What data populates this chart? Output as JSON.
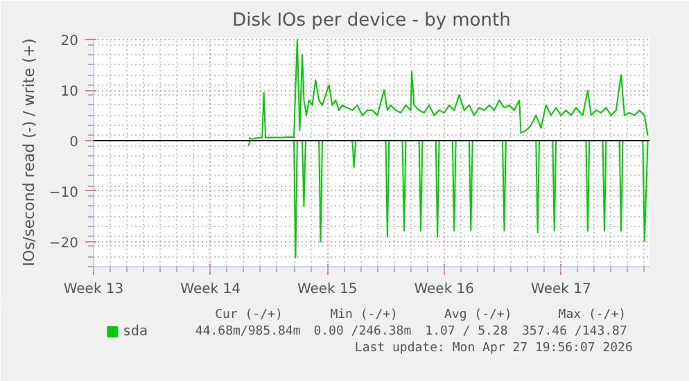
{
  "chart_data": {
    "type": "line",
    "title": "Disk IOs per device - by month",
    "ylabel": "IOs/second read (-) / write (+)",
    "xlim": [
      "2026-03-23",
      "2026-04-25T07:12"
    ],
    "xticks": [
      {
        "value": "2026-03-23",
        "label": "Week 13"
      },
      {
        "value": "2026-03-30",
        "label": "Week 14"
      },
      {
        "value": "2026-04-06",
        "label": "Week 15"
      },
      {
        "value": "2026-04-13",
        "label": "Week 16"
      },
      {
        "value": "2026-04-20",
        "label": "Week 17"
      }
    ],
    "ylim": [
      -25,
      20.3
    ],
    "yticks": [
      -20,
      -10,
      0,
      10,
      20
    ],
    "grid": true,
    "legend": "bottom left",
    "marker": "none",
    "line_style": "solid",
    "ref_lines": [
      {
        "axis": "y",
        "value": 0,
        "color": "#000000"
      }
    ],
    "series": [
      {
        "name": "sda",
        "color": "#00cc00",
        "x": [
          "2026-04-01T07:12",
          "2026-04-01T12:00",
          "2026-04-01T19:12",
          "2026-04-02T02:24",
          "2026-04-02T04:48",
          "2026-04-02T07:12",
          "2026-04-02T19:12",
          "2026-04-03T07:12",
          "2026-04-03T19:12",
          "2026-04-04T00:00",
          "2026-04-04T04:48",
          "2026-04-04T08:24",
          "2026-04-04T12:00",
          "2026-04-04T14:24",
          "2026-04-04T18:00",
          "2026-04-04T21:36",
          "2026-04-05T02:24",
          "2026-04-05T07:12",
          "2026-04-05T12:00",
          "2026-04-05T16:48",
          "2026-04-05T21:36",
          "2026-04-06T02:24",
          "2026-04-06T07:12",
          "2026-04-06T12:00",
          "2026-04-06T16:48",
          "2026-04-06T21:36",
          "2026-04-07T04:48",
          "2026-04-07T12:00",
          "2026-04-07T19:12",
          "2026-04-08T02:24",
          "2026-04-08T09:36",
          "2026-04-08T16:48",
          "2026-04-09T00:00",
          "2026-04-09T09:36",
          "2026-04-09T14:24",
          "2026-04-09T19:12",
          "2026-04-10T02:24",
          "2026-04-10T09:36",
          "2026-04-10T16:48",
          "2026-04-11T00:00",
          "2026-04-11T01:26",
          "2026-04-11T04:48",
          "2026-04-11T12:00",
          "2026-04-11T19:12",
          "2026-04-12T02:24",
          "2026-04-12T09:36",
          "2026-04-12T16:48",
          "2026-04-13T00:00",
          "2026-04-13T07:12",
          "2026-04-13T14:24",
          "2026-04-13T21:36",
          "2026-04-14T04:48",
          "2026-04-14T12:00",
          "2026-04-14T19:12",
          "2026-04-15T02:24",
          "2026-04-15T09:36",
          "2026-04-15T16:48",
          "2026-04-16T00:00",
          "2026-04-16T07:12",
          "2026-04-16T14:24",
          "2026-04-16T21:36",
          "2026-04-17T04:48",
          "2026-04-17T12:00",
          "2026-04-17T14:24",
          "2026-04-17T21:36",
          "2026-04-18T04:48",
          "2026-04-18T12:00",
          "2026-04-18T19:12",
          "2026-04-19T02:24",
          "2026-04-19T09:36",
          "2026-04-19T16:48",
          "2026-04-20T00:00",
          "2026-04-20T07:12",
          "2026-04-20T14:24",
          "2026-04-20T21:36",
          "2026-04-21T07:12",
          "2026-04-21T14:24",
          "2026-04-21T19:12",
          "2026-04-22T02:24",
          "2026-04-22T09:36",
          "2026-04-22T16:48",
          "2026-04-23T00:00",
          "2026-04-23T07:12",
          "2026-04-23T14:24",
          "2026-04-23T19:12",
          "2026-04-24T02:24",
          "2026-04-24T09:36",
          "2026-04-24T16:48",
          "2026-04-25T00:00",
          "2026-04-25T04:48"
        ],
        "values": [
          0.5,
          0.3,
          0.5,
          0.6,
          9.5,
          0.6,
          0.6,
          0.6,
          0.7,
          0.6,
          20,
          2,
          17,
          8,
          5,
          8,
          7,
          12,
          8,
          7,
          9,
          11,
          7,
          8,
          6,
          7,
          6.5,
          6,
          7,
          5,
          6,
          6,
          5,
          10,
          6,
          7,
          6,
          5.5,
          7,
          6,
          13.6,
          7,
          6,
          5.5,
          7,
          5,
          6,
          5.5,
          7,
          6,
          9,
          6,
          7,
          5,
          6.5,
          6,
          7,
          6,
          8,
          6.5,
          7,
          6,
          8,
          1.5,
          2,
          3,
          5,
          2.5,
          7,
          5,
          6.5,
          5,
          6,
          5,
          6.5,
          5,
          9.9,
          5,
          6,
          5.5,
          6.5,
          5,
          6,
          13,
          5,
          5.5,
          5,
          6,
          5,
          1
        ]
      },
      {
        "color": "#00cc00",
        "x": [
          "2026-04-01T07:12",
          "2026-04-01T08:24",
          "2026-04-01T12:00",
          "2026-04-04T00:00",
          "2026-04-04T02:24",
          "2026-04-04T04:48",
          "2026-04-04T12:00",
          "2026-04-04T14:24",
          "2026-04-04T16:48",
          "2026-04-05T12:00",
          "2026-04-05T14:24",
          "2026-04-05T16:48",
          "2026-04-07T12:00",
          "2026-04-07T14:24",
          "2026-04-07T16:48",
          "2026-04-09T12:00",
          "2026-04-09T14:24",
          "2026-04-09T16:48",
          "2026-04-10T12:00",
          "2026-04-10T14:24",
          "2026-04-10T16:48",
          "2026-04-11T12:00",
          "2026-04-11T14:24",
          "2026-04-11T16:48",
          "2026-04-12T12:00",
          "2026-04-12T14:24",
          "2026-04-12T16:48",
          "2026-04-13T12:00",
          "2026-04-13T14:24",
          "2026-04-13T16:48",
          "2026-04-14T12:00",
          "2026-04-14T14:24",
          "2026-04-14T16:48",
          "2026-04-16T12:00",
          "2026-04-16T14:24",
          "2026-04-16T16:48",
          "2026-04-18T12:00",
          "2026-04-18T14:24",
          "2026-04-18T16:48",
          "2026-04-19T12:00",
          "2026-04-19T14:24",
          "2026-04-19T16:48",
          "2026-04-21T12:00",
          "2026-04-21T14:24",
          "2026-04-21T16:48",
          "2026-04-22T12:00",
          "2026-04-22T14:24",
          "2026-04-22T16:48",
          "2026-04-23T12:00",
          "2026-04-23T14:24",
          "2026-04-23T16:48",
          "2026-04-24T21:36",
          "2026-04-25T00:00",
          "2026-04-25T04:48"
        ],
        "values": [
          -1,
          0,
          0,
          0,
          -23.2,
          0,
          0,
          -13.1,
          0,
          0,
          -20.1,
          0,
          0,
          -5.3,
          0,
          0,
          -19.1,
          0,
          0,
          -17.9,
          0,
          0,
          -17.9,
          0,
          0,
          -19.1,
          0,
          0,
          -17.9,
          0,
          0,
          -17.9,
          0,
          0,
          -17.9,
          0,
          0,
          -18.2,
          0,
          0,
          -17.9,
          0,
          0,
          -17.9,
          0,
          0,
          -17.9,
          0,
          0,
          -17.9,
          0,
          0,
          -20,
          0
        ]
      }
    ],
    "annotations": [
      "Cur (-/+)",
      "Min (-/+)",
      "Avg (-/+)",
      "Max (-/+)",
      "44.68m/985.84m",
      "0.00 /246.38m",
      "1.07 /  5.28",
      "357.46 /143.87",
      "Last update: Mon Apr 27 19:56:07 2026"
    ]
  }
}
